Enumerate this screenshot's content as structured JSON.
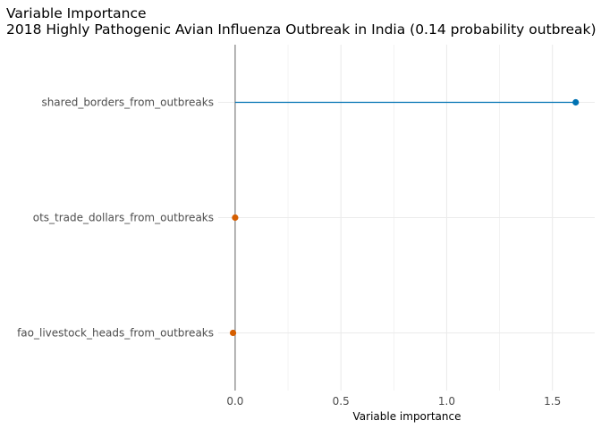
{
  "chart_data": {
    "type": "lollipop",
    "title": "Variable Importance",
    "subtitle": "2018 Highly Pathogenic Avian Influenza Outbreak in India (0.14 probability outbreak)",
    "xlabel": "Variable importance",
    "ylabel": "",
    "xlim": [
      -0.08,
      1.7
    ],
    "x_ticks": [
      0.0,
      0.5,
      1.0,
      1.5
    ],
    "x_tick_labels": [
      "0.0",
      "0.5",
      "1.0",
      "1.5"
    ],
    "grid": true,
    "zero_line": true,
    "categories": [
      "shared_borders_from_outbreaks",
      "ots_trade_dollars_from_outbreaks",
      "fao_livestock_heads_from_outbreaks"
    ],
    "values": [
      1.61,
      0.0,
      -0.01
    ],
    "colors": {
      "positive": "#0072B2",
      "negative": "#D55E00",
      "zero_line": "#808080",
      "grid": "#ebebeb"
    }
  }
}
